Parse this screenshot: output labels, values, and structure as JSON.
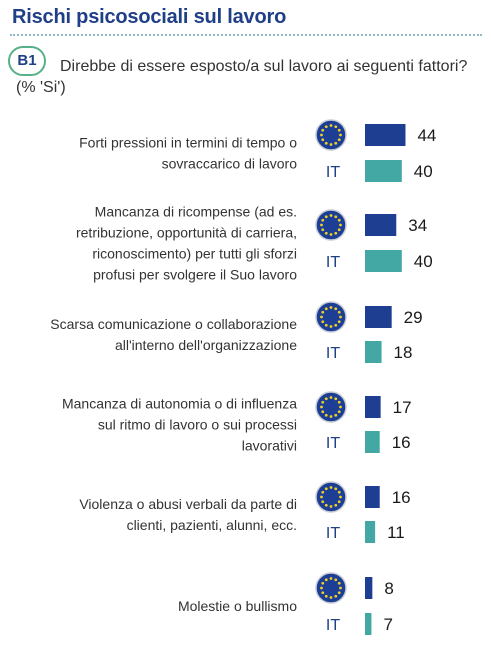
{
  "header": {
    "title": "Rischi psicosociali sul lavoro",
    "badge": "B1",
    "question": "Direbbe di essere esposto/a sul lavoro ai seguenti fattori? (% 'Si')"
  },
  "colors": {
    "eu": "#1e3f91",
    "it": "#43a8a3",
    "title": "#1f3f87",
    "badge_border": "#57b087"
  },
  "chart_data": {
    "type": "bar",
    "orientation": "horizontal",
    "categories": [
      [
        "Forti pressioni in termini di tempo o",
        "sovraccarico di lavoro"
      ],
      [
        "Mancanza di ricompense (ad es.",
        "retribuzione, opportunità di carriera,",
        "riconoscimento) per tutti gli sforzi",
        "profusi per svolgere il Suo lavoro"
      ],
      [
        "Scarsa comunicazione o collaborazione",
        "all'interno dell'organizzazione"
      ],
      [
        "Mancanza di autonomia o di influenza",
        "sul ritmo di lavoro o sui processi",
        "lavorativi"
      ],
      [
        "Violenza o abusi verbali da parte di",
        "clienti, pazienti, alunni, ecc."
      ],
      [
        "Molestie o bullismo"
      ]
    ],
    "series": [
      {
        "name": "",
        "values": [
          44,
          34,
          29,
          17,
          16,
          8
        ]
      },
      {
        "name": "IT",
        "values": [
          40,
          40,
          18,
          16,
          11,
          7
        ]
      }
    ],
    "series_markers": [
      "eu-flag-icon",
      "IT"
    ],
    "xlim": [
      0,
      50
    ]
  }
}
